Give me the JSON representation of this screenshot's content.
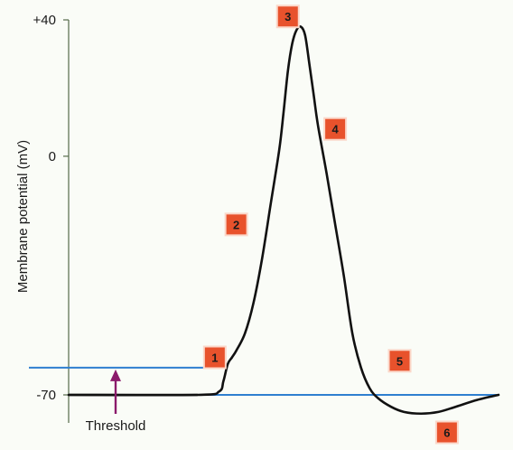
{
  "chart_data": {
    "type": "line",
    "title": "",
    "xlabel": "",
    "ylabel": "Membrane potential (mV)",
    "ylim": [
      -70,
      40
    ],
    "yticks": [
      {
        "value": 40,
        "label": "+40"
      },
      {
        "value": 0,
        "label": "0"
      },
      {
        "value": -70,
        "label": "-70"
      }
    ],
    "series": [
      {
        "values": [
          [
            0,
            -70
          ],
          [
            30,
            -70
          ],
          [
            35,
            -69
          ],
          [
            36,
            -66
          ],
          [
            37,
            -61
          ],
          [
            38,
            -59
          ],
          [
            39,
            -57
          ],
          [
            41,
            -52
          ],
          [
            43,
            -43
          ],
          [
            45,
            -30
          ],
          [
            47,
            -14
          ],
          [
            49,
            2
          ],
          [
            50,
            13
          ],
          [
            51,
            25
          ],
          [
            52,
            33
          ],
          [
            53,
            37
          ],
          [
            54,
            38
          ],
          [
            55,
            35.5
          ],
          [
            56,
            27
          ],
          [
            57,
            18
          ],
          [
            58,
            9
          ],
          [
            60,
            -5
          ],
          [
            62,
            -20
          ],
          [
            64,
            -35
          ],
          [
            66,
            -52
          ],
          [
            68,
            -62
          ],
          [
            70,
            -68
          ],
          [
            72,
            -71
          ],
          [
            75,
            -73.5
          ],
          [
            78,
            -75
          ],
          [
            82,
            -75.5
          ],
          [
            86,
            -75
          ],
          [
            90,
            -73.5
          ],
          [
            95,
            -71.5
          ],
          [
            100,
            -70
          ]
        ]
      }
    ],
    "reference_lines": [
      {
        "name": "threshold",
        "y": -62,
        "x_range": [
          0,
          37
        ]
      },
      {
        "name": "resting",
        "y": -70,
        "x_range": [
          30,
          100
        ]
      }
    ],
    "annotations": {
      "threshold_label": "Threshold",
      "arrow_color": "#8b1a6b"
    },
    "steps": [
      {
        "label": "1",
        "x": 34,
        "y": -59
      },
      {
        "label": "2",
        "x": 39,
        "y": -20
      },
      {
        "label": "3",
        "x": 51,
        "y": 41
      },
      {
        "label": "4",
        "x": 62,
        "y": 8
      },
      {
        "label": "5",
        "x": 77,
        "y": -60
      },
      {
        "label": "6",
        "x": 88,
        "y": -81
      }
    ],
    "colors": {
      "curve": "#111111",
      "reference": "#2f7fd0",
      "axis": "#556b4a",
      "step_fill": "#e8522c",
      "arrow": "#8b1a6b"
    },
    "grid": false
  }
}
